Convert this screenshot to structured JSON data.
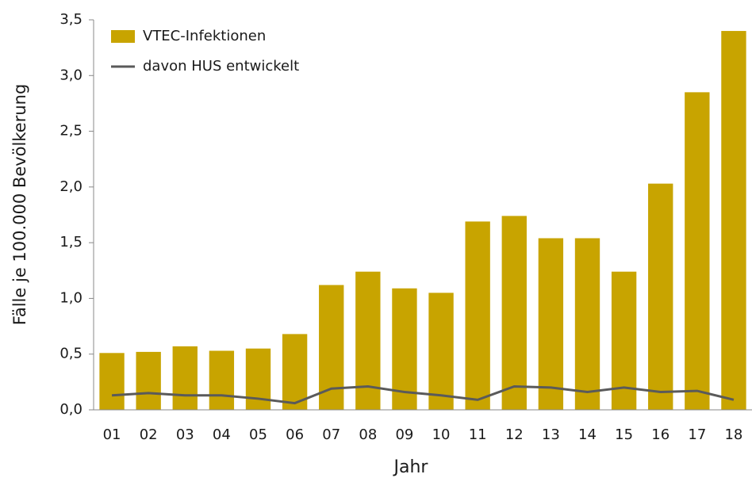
{
  "chart_data": {
    "type": "bar-line",
    "x_label": "Jahr",
    "y_label": "Fälle je 100.000 Bevölkerung",
    "categories": [
      "01",
      "02",
      "03",
      "04",
      "05",
      "06",
      "07",
      "08",
      "09",
      "10",
      "11",
      "12",
      "13",
      "14",
      "15",
      "16",
      "17",
      "18"
    ],
    "series": [
      {
        "name": "VTEC-Infektionen",
        "type": "bar",
        "color": "#c8a400",
        "values": [
          0.51,
          0.52,
          0.57,
          0.53,
          0.55,
          0.68,
          1.12,
          1.24,
          1.09,
          1.05,
          1.69,
          1.74,
          1.54,
          1.54,
          1.24,
          2.03,
          2.85,
          3.4
        ]
      },
      {
        "name": "davon HUS entwickelt",
        "type": "line",
        "color": "#5a5a5a",
        "values": [
          0.13,
          0.15,
          0.13,
          0.13,
          0.1,
          0.06,
          0.19,
          0.21,
          0.16,
          0.13,
          0.09,
          0.21,
          0.2,
          0.16,
          0.2,
          0.16,
          0.17,
          0.09
        ]
      }
    ],
    "ylim": [
      0,
      3.5
    ],
    "yticks": [
      {
        "value": 0,
        "label": "0,0"
      },
      {
        "value": 0.5,
        "label": "0,5"
      },
      {
        "value": 1,
        "label": "1,0"
      },
      {
        "value": 1.5,
        "label": "1,5"
      },
      {
        "value": 2,
        "label": "2,0"
      },
      {
        "value": 2.5,
        "label": "2,5"
      },
      {
        "value": 3,
        "label": "3,0"
      },
      {
        "value": 3.5,
        "label": "3,5"
      }
    ],
    "legend": "top-left"
  }
}
